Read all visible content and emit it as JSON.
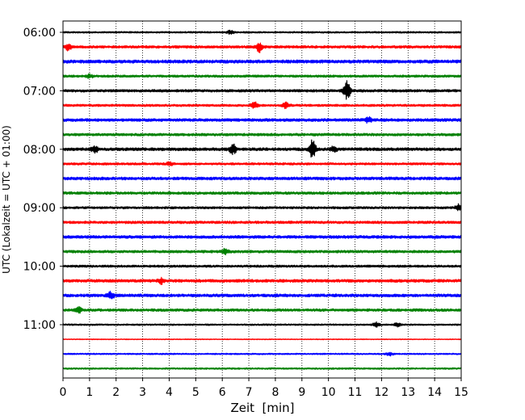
{
  "chart_data": {
    "type": "line",
    "title": "",
    "xlabel": "Zeit  [min]",
    "ylabel": "UTC (Lokalzeit = UTC + 01:00)",
    "xlim": [
      0,
      15
    ],
    "x_ticks": [
      "0",
      "1",
      "2",
      "3",
      "4",
      "5",
      "6",
      "7",
      "8",
      "9",
      "10",
      "11",
      "12",
      "13",
      "14",
      "15"
    ],
    "y_tick_labels": [
      "06:00",
      "07:00",
      "08:00",
      "09:00",
      "10:00",
      "11:00"
    ],
    "grid": "vertical-dotted",
    "trace_colors": [
      "#000000",
      "#ff0000",
      "#0000ff",
      "#008000"
    ],
    "series": [
      {
        "start": "06:00",
        "amplitude": 1.0,
        "events": [
          {
            "x": 6.3,
            "amp": 2
          }
        ]
      },
      {
        "start": "06:15",
        "amplitude": 1.6,
        "events": [
          {
            "x": 0.2,
            "amp": 4
          },
          {
            "x": 7.4,
            "amp": 6
          }
        ]
      },
      {
        "start": "06:30",
        "amplitude": 2.0,
        "events": []
      },
      {
        "start": "06:45",
        "amplitude": 1.4,
        "events": [
          {
            "x": 1.0,
            "amp": 2
          }
        ]
      },
      {
        "start": "07:00",
        "amplitude": 1.6,
        "events": [
          {
            "x": 10.7,
            "amp": 12
          }
        ]
      },
      {
        "start": "07:15",
        "amplitude": 1.4,
        "events": [
          {
            "x": 7.2,
            "amp": 4
          },
          {
            "x": 8.4,
            "amp": 3
          }
        ]
      },
      {
        "start": "07:30",
        "amplitude": 1.8,
        "events": [
          {
            "x": 11.5,
            "amp": 3
          }
        ]
      },
      {
        "start": "07:45",
        "amplitude": 1.6,
        "events": []
      },
      {
        "start": "08:00",
        "amplitude": 1.8,
        "events": [
          {
            "x": 1.2,
            "amp": 4
          },
          {
            "x": 6.4,
            "amp": 6
          },
          {
            "x": 9.4,
            "amp": 11
          },
          {
            "x": 10.2,
            "amp": 3
          }
        ]
      },
      {
        "start": "08:15",
        "amplitude": 1.4,
        "events": [
          {
            "x": 4.0,
            "amp": 2
          }
        ]
      },
      {
        "start": "08:30",
        "amplitude": 1.8,
        "events": []
      },
      {
        "start": "08:45",
        "amplitude": 1.6,
        "events": []
      },
      {
        "start": "09:00",
        "amplitude": 1.4,
        "events": [
          {
            "x": 14.9,
            "amp": 4
          }
        ]
      },
      {
        "start": "09:15",
        "amplitude": 1.6,
        "events": []
      },
      {
        "start": "09:30",
        "amplitude": 1.8,
        "events": []
      },
      {
        "start": "09:45",
        "amplitude": 1.6,
        "events": [
          {
            "x": 6.1,
            "amp": 3
          }
        ]
      },
      {
        "start": "10:00",
        "amplitude": 1.4,
        "events": []
      },
      {
        "start": "10:15",
        "amplitude": 1.8,
        "events": [
          {
            "x": 3.7,
            "amp": 3
          }
        ]
      },
      {
        "start": "10:30",
        "amplitude": 1.8,
        "events": [
          {
            "x": 1.8,
            "amp": 4
          }
        ]
      },
      {
        "start": "10:45",
        "amplitude": 1.6,
        "events": [
          {
            "x": 0.6,
            "amp": 3
          }
        ]
      },
      {
        "start": "11:00",
        "amplitude": 1.0,
        "events": [
          {
            "x": 11.8,
            "amp": 3
          },
          {
            "x": 12.6,
            "amp": 2
          }
        ]
      },
      {
        "start": "11:15",
        "amplitude": 0.5,
        "events": []
      },
      {
        "start": "11:30",
        "amplitude": 0.9,
        "events": [
          {
            "x": 12.3,
            "amp": 2
          }
        ]
      },
      {
        "start": "11:45",
        "amplitude": 1.0,
        "events": []
      }
    ]
  }
}
